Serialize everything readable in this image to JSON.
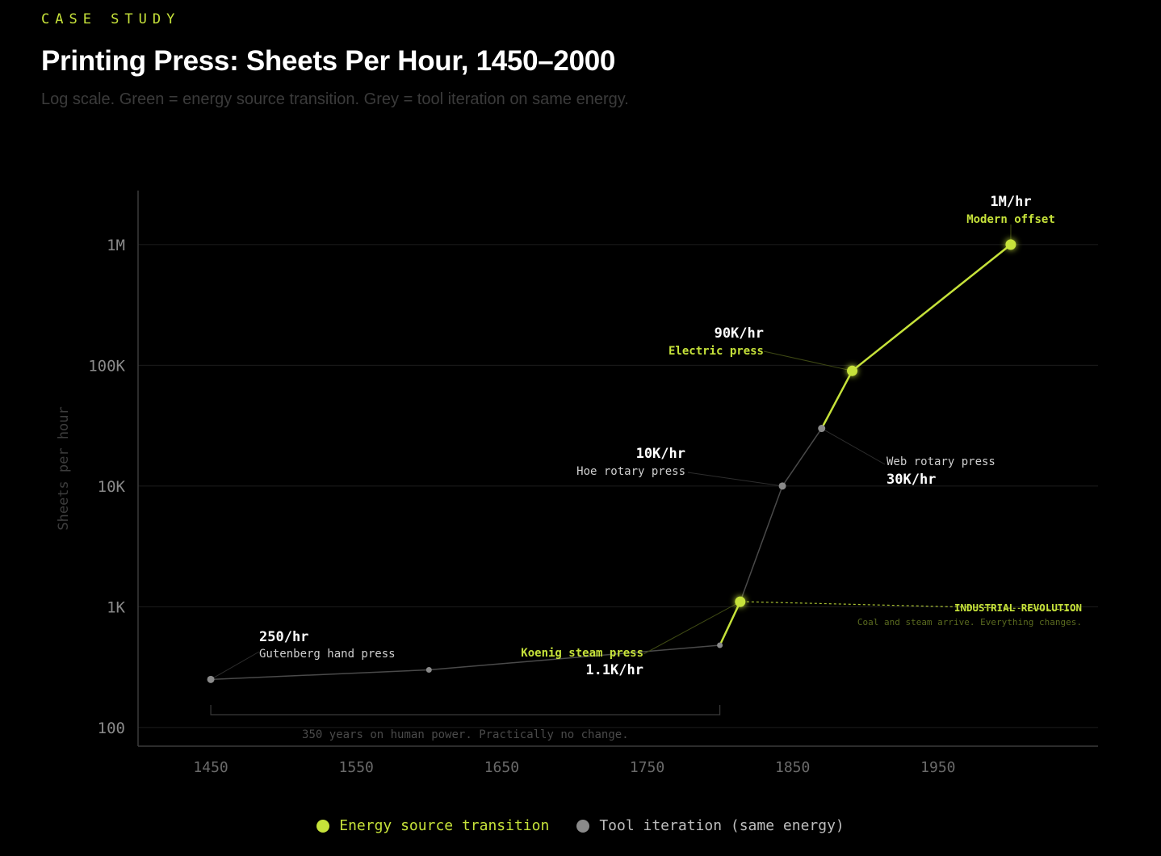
{
  "header": {
    "eyebrow": "CASE STUDY",
    "title": "Printing Press: Sheets Per Hour, 1450–2000",
    "subtitle": "Log scale. Green = energy source transition. Grey = tool iteration on same energy."
  },
  "colors": {
    "energy": "#c6e23a",
    "tool": "#8a8a8a",
    "background": "#000000"
  },
  "chart_data": {
    "type": "line",
    "yscale": "log",
    "ylabel": "Sheets per hour",
    "xlabel": "",
    "xlim": [
      1400,
      2060
    ],
    "ylim": [
      70,
      2800000
    ],
    "xticks": [
      1450,
      1550,
      1650,
      1750,
      1850,
      1950
    ],
    "yticks": [
      {
        "value": 100,
        "label": "100"
      },
      {
        "value": 1000,
        "label": "1K"
      },
      {
        "value": 10000,
        "label": "10K"
      },
      {
        "value": 100000,
        "label": "100K"
      },
      {
        "value": 1000000,
        "label": "1M"
      }
    ],
    "grid": true,
    "points": [
      {
        "year": 1450,
        "value": 250,
        "kind": "tool",
        "name": "Gutenberg hand press",
        "value_label": "250/hr",
        "labeled": true
      },
      {
        "year": 1600,
        "value": 300,
        "kind": "tool",
        "labeled": false
      },
      {
        "year": 1800,
        "value": 480,
        "kind": "tool",
        "labeled": false
      },
      {
        "year": 1814,
        "value": 1100,
        "kind": "energy",
        "name": "Koenig steam press",
        "value_label": "1.1K/hr",
        "labeled": true
      },
      {
        "year": 1843,
        "value": 10000,
        "kind": "tool",
        "name": "Hoe rotary press",
        "value_label": "10K/hr",
        "labeled": true
      },
      {
        "year": 1870,
        "value": 30000,
        "kind": "tool",
        "name": "Web rotary press",
        "value_label": "30K/hr",
        "labeled": true
      },
      {
        "year": 1891,
        "value": 90000,
        "kind": "energy",
        "name": "Electric press",
        "value_label": "90K/hr",
        "labeled": true
      },
      {
        "year": 2000,
        "value": 1000000,
        "kind": "energy",
        "name": "Modern offset",
        "value_label": "1M/hr",
        "labeled": true
      }
    ],
    "annotations": [
      {
        "id": "industrial",
        "title": "INDUSTRIAL REVOLUTION",
        "text": "Coal and steam arrive. Everything changes.",
        "from_year": 1814,
        "value": 1100
      },
      {
        "id": "human-power",
        "text": "350 years on human power. Practically no change.",
        "from_year": 1450,
        "to_year": 1800
      }
    ],
    "legend": [
      {
        "kind": "energy",
        "label": "Energy source transition"
      },
      {
        "kind": "tool",
        "label": "Tool iteration (same energy)"
      }
    ],
    "legend_position": "bottom-center"
  }
}
